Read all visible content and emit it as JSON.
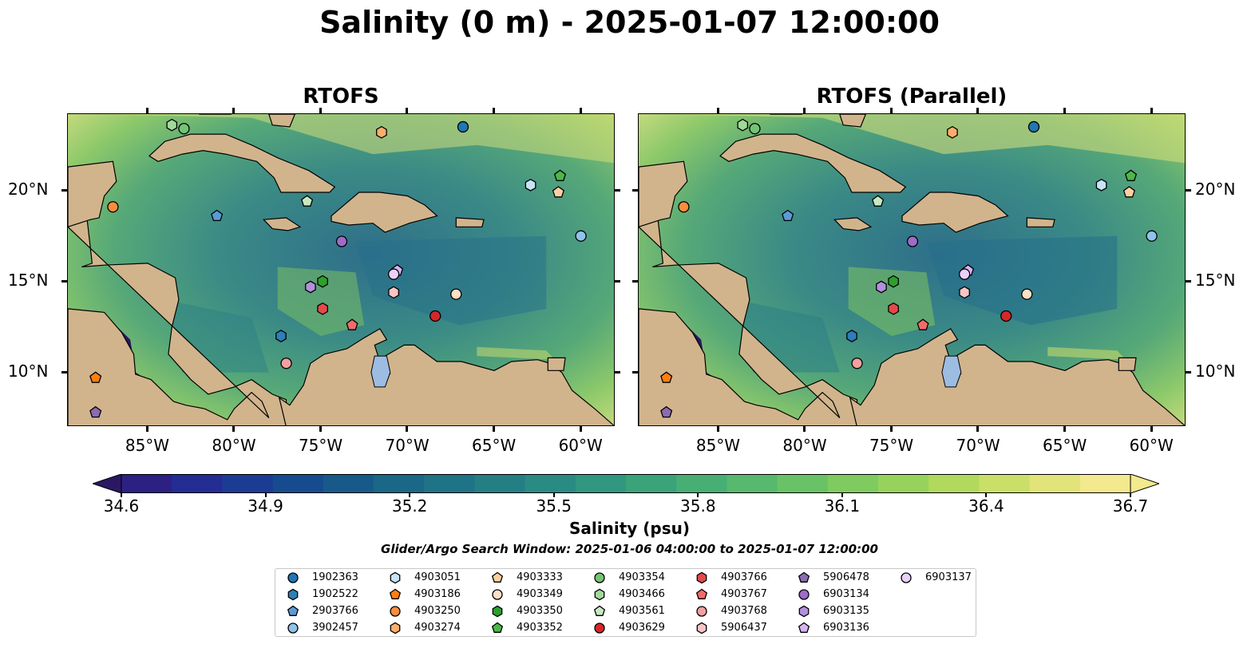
{
  "title": "Salinity (0 m) - 2025-01-07 12:00:00",
  "panels": [
    {
      "title": "RTOFS"
    },
    {
      "title": "RTOFS (Parallel)"
    }
  ],
  "axes": {
    "x_labels": [
      "85°W",
      "80°W",
      "75°W",
      "70°W",
      "65°W",
      "60°W"
    ],
    "y_labels": [
      "20°N",
      "15°N",
      "10°N"
    ],
    "x_lon": [
      -85,
      -80,
      -75,
      -70,
      -65,
      -60
    ],
    "y_lat": [
      20,
      15,
      10
    ],
    "lon_range": [
      -89.6,
      -58.0
    ],
    "lat_range": [
      7.0,
      24.2
    ]
  },
  "colorbar": {
    "label": "Salinity (psu)",
    "ticks": [
      "34.6",
      "34.9",
      "35.2",
      "35.5",
      "35.8",
      "36.1",
      "36.4",
      "36.7"
    ],
    "range": [
      34.6,
      36.7
    ],
    "extend": "both",
    "colormap": "haline",
    "colors": [
      "#2a1864",
      "#2c2183",
      "#232d93",
      "#1a3c95",
      "#164c8f",
      "#175a8a",
      "#1b6787",
      "#1f7386",
      "#247f85",
      "#2a8b83",
      "#31977f",
      "#3ba37a",
      "#47ae74",
      "#56b96d",
      "#69c265",
      "#7fcb5f",
      "#97d35c",
      "#b1d95e",
      "#cadf68",
      "#e2e378",
      "#f3e98e"
    ]
  },
  "search_window": "Glider/Argo Search Window: 2025-01-06 04:00:00 to 2025-01-07 12:00:00",
  "colors": {
    "land": "#d1b48c",
    "lake": "#9dbce2",
    "ocean_pacific": "#2a1864"
  },
  "floats": [
    {
      "id": "1902363",
      "marker": "circle",
      "color": "#1f77b4",
      "lon": -66.8,
      "lat": 23.5
    },
    {
      "id": "1902522",
      "marker": "hexagon",
      "color": "#2c7fb8",
      "lon": -77.3,
      "lat": 12.0
    },
    {
      "id": "2903766",
      "marker": "pentagon",
      "color": "#5b9bd5",
      "lon": -81.0,
      "lat": 18.6
    },
    {
      "id": "3902457",
      "marker": "circle",
      "color": "#8fc3eb",
      "lon": -60.0,
      "lat": 17.5
    },
    {
      "id": "4903051",
      "marker": "hexagon",
      "color": "#c6e3f7",
      "lon": -62.9,
      "lat": 20.3
    },
    {
      "id": "4903186",
      "marker": "pentagon",
      "color": "#ff7f0e",
      "lon": -88.0,
      "lat": 9.7
    },
    {
      "id": "4903250",
      "marker": "circle",
      "color": "#fd8d3c",
      "lon": -87.0,
      "lat": 19.1
    },
    {
      "id": "4903274",
      "marker": "hexagon",
      "color": "#fdae6b",
      "lon": -71.5,
      "lat": 23.2
    },
    {
      "id": "4903333",
      "marker": "pentagon",
      "color": "#fdd0a2",
      "lon": -61.3,
      "lat": 19.9
    },
    {
      "id": "4903349",
      "marker": "circle",
      "color": "#fde0c5",
      "lon": -67.2,
      "lat": 14.3
    },
    {
      "id": "4903350",
      "marker": "hexagon",
      "color": "#2ca02c",
      "lon": -74.9,
      "lat": 15.0
    },
    {
      "id": "4903352",
      "marker": "pentagon",
      "color": "#4bb84b",
      "lon": -61.2,
      "lat": 20.8
    },
    {
      "id": "4903354",
      "marker": "circle",
      "color": "#74c476",
      "lon": -82.9,
      "lat": 23.4
    },
    {
      "id": "4903466",
      "marker": "hexagon",
      "color": "#a1d99b",
      "lon": -83.6,
      "lat": 23.6
    },
    {
      "id": "4903561",
      "marker": "pentagon",
      "color": "#c7e9c0",
      "lon": -75.8,
      "lat": 19.4
    },
    {
      "id": "4903629",
      "marker": "circle",
      "color": "#d62728",
      "lon": -68.4,
      "lat": 13.1
    },
    {
      "id": "4903766",
      "marker": "hexagon",
      "color": "#e34a4a",
      "lon": -74.9,
      "lat": 13.5
    },
    {
      "id": "4903767",
      "marker": "pentagon",
      "color": "#f26b6b",
      "lon": -73.2,
      "lat": 12.6
    },
    {
      "id": "4903768",
      "marker": "circle",
      "color": "#f4a0a0",
      "lon": -77.0,
      "lat": 10.5
    },
    {
      "id": "5906437",
      "marker": "hexagon",
      "color": "#f7c5c5",
      "lon": -70.8,
      "lat": 14.4
    },
    {
      "id": "5906478",
      "marker": "pentagon",
      "color": "#8c6bb1",
      "lon": -88.0,
      "lat": 7.8
    },
    {
      "id": "6903134",
      "marker": "circle",
      "color": "#9e6bc9",
      "lon": -73.8,
      "lat": 17.2
    },
    {
      "id": "6903135",
      "marker": "hexagon",
      "color": "#b390dd",
      "lon": -75.6,
      "lat": 14.7
    },
    {
      "id": "6903136",
      "marker": "pentagon",
      "color": "#d7b5f0",
      "lon": -70.6,
      "lat": 15.6
    },
    {
      "id": "6903137",
      "marker": "circle",
      "color": "#ead1fb",
      "lon": -70.8,
      "lat": 15.4
    }
  ]
}
